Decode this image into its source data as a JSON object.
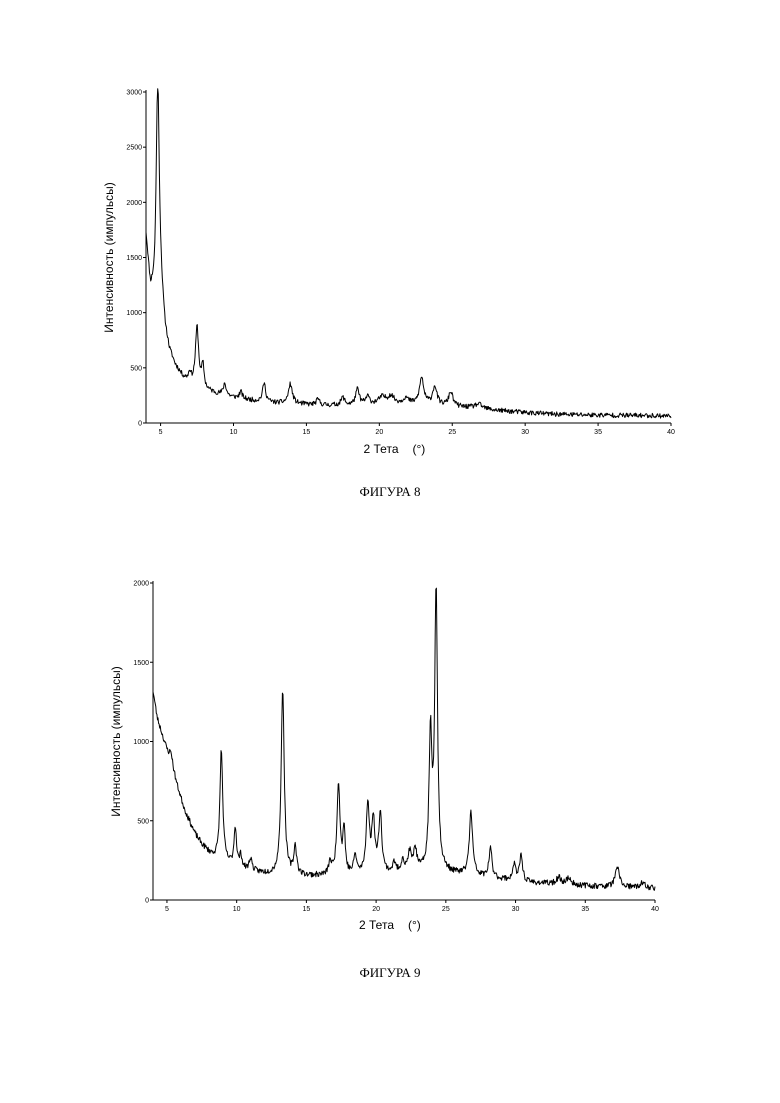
{
  "chart_data": [
    {
      "type": "line",
      "caption": "ФИГУРА 8",
      "xlabel": "2 Тета",
      "xunit": "(°)",
      "ylabel": "Интенсивность (импульсы)",
      "xlim": [
        4,
        40
      ],
      "ylim": [
        0,
        3000
      ],
      "x_ticks": [
        5,
        10,
        15,
        20,
        25,
        30,
        35,
        40
      ],
      "y_ticks": [
        0,
        500,
        1000,
        1500,
        2000,
        2500,
        3000
      ],
      "baseline": [
        [
          4,
          1700
        ],
        [
          4.3,
          1200
        ],
        [
          4.6,
          1150
        ],
        [
          4.9,
          1400
        ],
        [
          5.3,
          850
        ],
        [
          5.6,
          650
        ],
        [
          6,
          520
        ],
        [
          6.5,
          420
        ],
        [
          7,
          360
        ],
        [
          7.5,
          330
        ],
        [
          8,
          300
        ],
        [
          9,
          260
        ],
        [
          10,
          230
        ],
        [
          11,
          210
        ],
        [
          12,
          190
        ],
        [
          13,
          180
        ],
        [
          14,
          175
        ],
        [
          16,
          160
        ],
        [
          18,
          160
        ],
        [
          20,
          170
        ],
        [
          22,
          175
        ],
        [
          24,
          160
        ],
        [
          26,
          140
        ],
        [
          28,
          115
        ],
        [
          30,
          95
        ],
        [
          32,
          80
        ],
        [
          35,
          72
        ],
        [
          38,
          68
        ],
        [
          40,
          65
        ]
      ],
      "peaks": [
        [
          4.8,
          1800,
          0.12
        ],
        [
          7.5,
          540,
          0.13
        ],
        [
          7.9,
          200,
          0.1
        ],
        [
          7.0,
          90,
          0.1
        ],
        [
          9.4,
          110,
          0.12
        ],
        [
          10.5,
          60,
          0.12
        ],
        [
          12.1,
          170,
          0.13
        ],
        [
          13.9,
          175,
          0.16
        ],
        [
          15.8,
          50,
          0.15
        ],
        [
          17.5,
          70,
          0.15
        ],
        [
          18.5,
          140,
          0.15
        ],
        [
          19.2,
          70,
          0.15
        ],
        [
          20.2,
          60,
          0.3
        ],
        [
          20.8,
          70,
          0.25
        ],
        [
          21.8,
          50,
          0.2
        ],
        [
          22.9,
          240,
          0.17
        ],
        [
          23.8,
          170,
          0.17
        ],
        [
          24.9,
          130,
          0.17
        ],
        [
          26.8,
          40,
          0.3
        ]
      ],
      "noise": 22,
      "seed": 11
    },
    {
      "type": "line",
      "caption": "ФИГУРА 9",
      "xlabel": "2 Тета",
      "xunit": "(°)",
      "ylabel": "Интенсивность (импульсы)",
      "xlim": [
        4,
        40
      ],
      "ylim": [
        0,
        2000
      ],
      "x_ticks": [
        5,
        10,
        15,
        20,
        25,
        30,
        35,
        40
      ],
      "y_ticks": [
        0,
        500,
        1000,
        1500,
        2000
      ],
      "baseline": [
        [
          4,
          1320
        ],
        [
          4.3,
          1150
        ],
        [
          4.8,
          1000
        ],
        [
          5.3,
          850
        ],
        [
          5.8,
          700
        ],
        [
          6.3,
          560
        ],
        [
          7,
          420
        ],
        [
          7.5,
          350
        ],
        [
          8,
          300
        ],
        [
          8.5,
          260
        ],
        [
          9,
          240
        ],
        [
          10,
          200
        ],
        [
          11,
          180
        ],
        [
          12,
          165
        ],
        [
          13,
          155
        ],
        [
          15,
          150
        ],
        [
          17,
          150
        ],
        [
          19,
          155
        ],
        [
          21,
          165
        ],
        [
          23,
          175
        ],
        [
          25,
          170
        ],
        [
          27,
          150
        ],
        [
          29,
          130
        ],
        [
          31,
          110
        ],
        [
          33,
          100
        ],
        [
          35,
          90
        ],
        [
          37,
          80
        ],
        [
          40,
          75
        ]
      ],
      "peaks": [
        [
          5.3,
          80,
          0.15
        ],
        [
          8.9,
          700,
          0.12
        ],
        [
          9.9,
          250,
          0.11
        ],
        [
          10.3,
          80,
          0.1
        ],
        [
          11.0,
          80,
          0.12
        ],
        [
          13.3,
          1180,
          0.13
        ],
        [
          14.2,
          180,
          0.12
        ],
        [
          16.7,
          80,
          0.12
        ],
        [
          17.3,
          580,
          0.13
        ],
        [
          17.7,
          280,
          0.1
        ],
        [
          18.5,
          120,
          0.12
        ],
        [
          19.4,
          440,
          0.13
        ],
        [
          19.8,
          330,
          0.13
        ],
        [
          20.3,
          380,
          0.13
        ],
        [
          21.3,
          60,
          0.12
        ],
        [
          21.9,
          80,
          0.12
        ],
        [
          22.4,
          120,
          0.13
        ],
        [
          22.8,
          140,
          0.13
        ],
        [
          23.9,
          840,
          0.12
        ],
        [
          24.3,
          1770,
          0.12
        ],
        [
          26.8,
          400,
          0.14
        ],
        [
          28.2,
          180,
          0.13
        ],
        [
          29.9,
          100,
          0.13
        ],
        [
          30.4,
          170,
          0.12
        ],
        [
          33.1,
          40,
          0.2
        ],
        [
          33.8,
          40,
          0.2
        ],
        [
          37.3,
          120,
          0.2
        ],
        [
          39.1,
          30,
          0.2
        ]
      ],
      "noise": 18,
      "seed": 23
    }
  ]
}
